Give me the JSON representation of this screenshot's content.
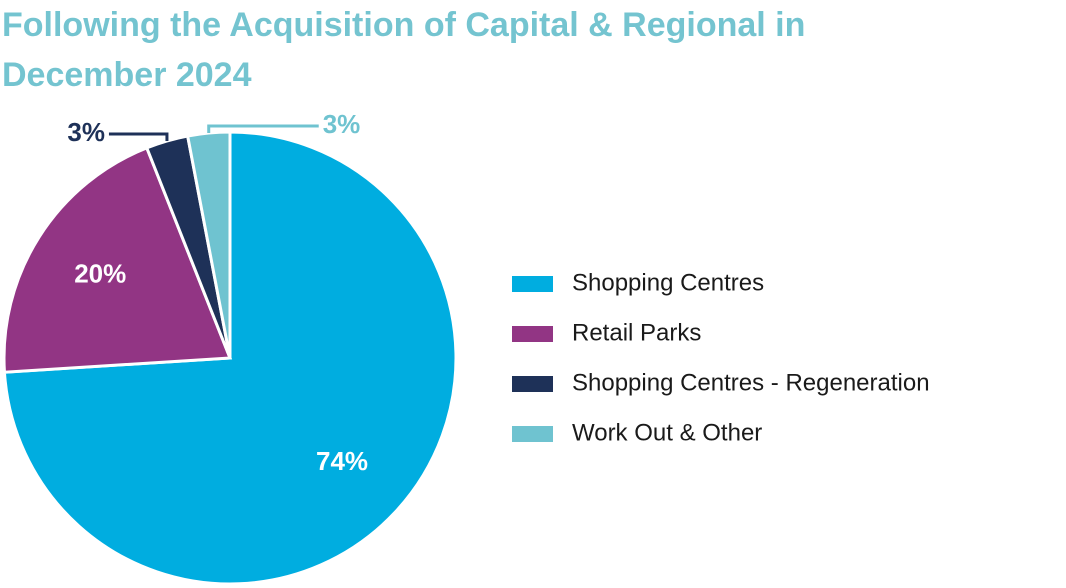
{
  "chart_data": {
    "type": "pie",
    "title": "Following the Acquisition of Capital & Regional in December 2024",
    "categories": [
      "Shopping Centres",
      "Retail Parks",
      "Shopping Centres - Regeneration",
      "Work Out & Other"
    ],
    "values": [
      74,
      20,
      3,
      3
    ],
    "value_labels": [
      "74%",
      "20%",
      "3%",
      "3%"
    ],
    "colors": [
      "#00ade0",
      "#923584",
      "#1e3158",
      "#6fc3d0"
    ],
    "legend": "right"
  }
}
